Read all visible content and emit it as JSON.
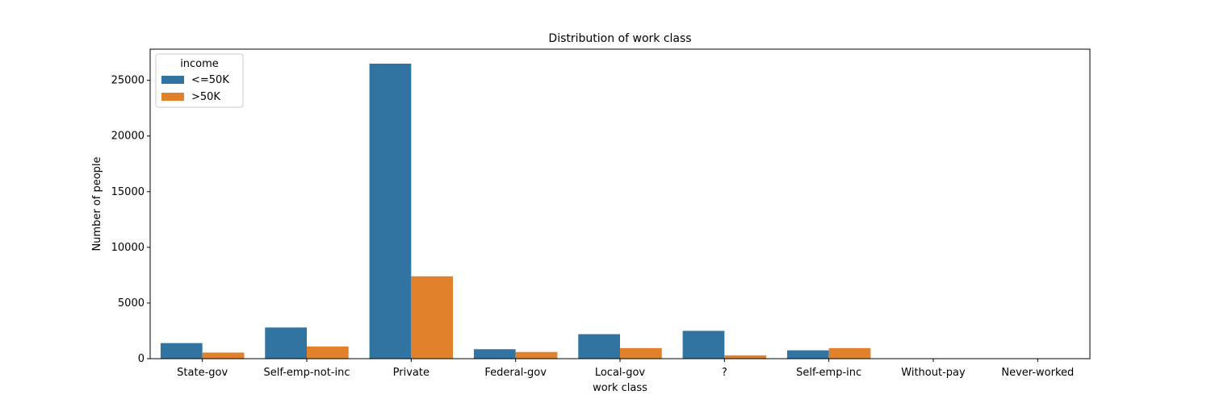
{
  "chart_data": {
    "type": "bar",
    "title": "Distribution of work class",
    "xlabel": "work class",
    "ylabel": "Number of people",
    "categories": [
      " State-gov",
      " Self-emp-not-inc",
      " Private",
      " Federal-gov",
      " Local-gov",
      " ?",
      " Self-emp-inc",
      " Without-pay",
      " Never-worked"
    ],
    "series": [
      {
        "name": " <=50K",
        "color": "#3274a1",
        "values": [
          1400,
          2800,
          26500,
          850,
          2200,
          2500,
          750,
          14,
          7
        ]
      },
      {
        "name": " >50K",
        "color": "#e1812c",
        "values": [
          550,
          1100,
          7400,
          600,
          950,
          300,
          950,
          0,
          0
        ]
      }
    ],
    "ylim": [
      0,
      27800
    ],
    "yticks": [
      0,
      5000,
      10000,
      15000,
      20000,
      25000
    ],
    "legend": {
      "title": "income",
      "position": "top-left"
    },
    "grid": false
  }
}
